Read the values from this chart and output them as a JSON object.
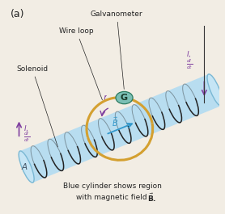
{
  "bg_color": "#f2ede4",
  "title_label": "(a)",
  "solenoid_color": "#b8ddf0",
  "solenoid_edge": "#7ab8d4",
  "coil_color": "#222222",
  "wire_loop_color": "#d4a030",
  "galvanometer_color": "#7bbfb5",
  "galvanometer_edge": "#2a7a60",
  "galvanometer_text": "G",
  "arrow_color": "#8040a0",
  "field_arrow_color": "#3399cc",
  "text_color": "#222222",
  "label_galvanometer": "Galvanometer",
  "label_wire_loop": "Wire loop",
  "label_solenoid": "Solenoid",
  "label_I_prime": "I′",
  "label_A": "A",
  "annotation_line1": "Blue cylinder shows region",
  "annotation_line2": "with magnetic field "
}
